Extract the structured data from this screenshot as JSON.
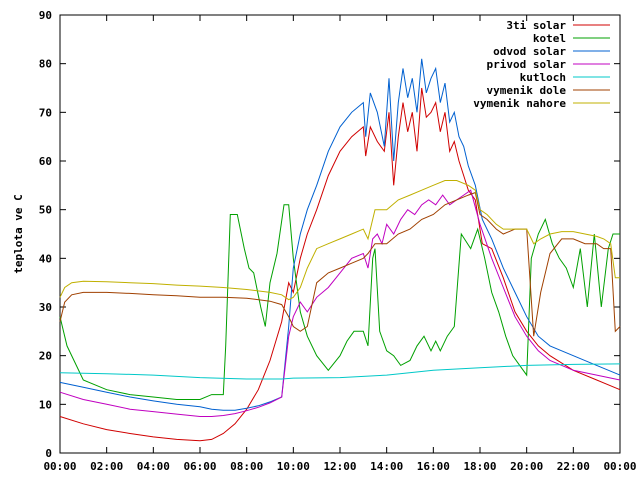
{
  "chart_data": {
    "type": "line",
    "ylabel": "teplota ve C",
    "xlabel": "",
    "title": "",
    "ylim": [
      0,
      90
    ],
    "xlim": [
      0,
      24
    ],
    "x_unit": "hours",
    "x_ticks": [
      {
        "value": 0,
        "label": "00:00"
      },
      {
        "value": 2,
        "label": "02:00"
      },
      {
        "value": 4,
        "label": "04:00"
      },
      {
        "value": 6,
        "label": "06:00"
      },
      {
        "value": 8,
        "label": "08:00"
      },
      {
        "value": 10,
        "label": "10:00"
      },
      {
        "value": 12,
        "label": "12:00"
      },
      {
        "value": 14,
        "label": "14:00"
      },
      {
        "value": 16,
        "label": "16:00"
      },
      {
        "value": 18,
        "label": "18:00"
      },
      {
        "value": 20,
        "label": "20:00"
      },
      {
        "value": 22,
        "label": "22:00"
      },
      {
        "value": 24,
        "label": "00:00"
      }
    ],
    "y_ticks": [
      {
        "value": 0,
        "label": "0"
      },
      {
        "value": 10,
        "label": "10"
      },
      {
        "value": 20,
        "label": "20"
      },
      {
        "value": 30,
        "label": "30"
      },
      {
        "value": 40,
        "label": "40"
      },
      {
        "value": 50,
        "label": "50"
      },
      {
        "value": 60,
        "label": "60"
      },
      {
        "value": 70,
        "label": "70"
      },
      {
        "value": 80,
        "label": "80"
      },
      {
        "value": 90,
        "label": "90"
      }
    ],
    "grid": false,
    "legend_position": "top-right",
    "series": [
      {
        "name": "3ti solar",
        "color": "#d00000",
        "x": [
          0,
          1,
          2,
          3,
          4,
          5,
          6,
          6.5,
          7,
          7.5,
          8,
          8.5,
          9,
          9.5,
          9.8,
          10,
          10.3,
          10.6,
          11,
          11.5,
          12,
          12.5,
          13,
          13.1,
          13.3,
          13.6,
          13.9,
          14.1,
          14.3,
          14.5,
          14.7,
          14.9,
          15.1,
          15.3,
          15.5,
          15.7,
          15.9,
          16.1,
          16.3,
          16.5,
          16.7,
          16.9,
          17.1,
          17.3,
          17.5,
          17.8,
          18.1,
          18.5,
          19,
          19.5,
          20,
          20.5,
          21,
          22,
          23,
          24
        ],
        "y": [
          7.5,
          6,
          4.8,
          4,
          3.3,
          2.8,
          2.5,
          2.8,
          4,
          6,
          9,
          13,
          19,
          27,
          35,
          33,
          40,
          45,
          50,
          57,
          62,
          65,
          67,
          61,
          67,
          64,
          62,
          70,
          55,
          65,
          72,
          66,
          70,
          62,
          75,
          69,
          70,
          72,
          66,
          70,
          62,
          64,
          60,
          57,
          54,
          52,
          43,
          42,
          36,
          29,
          25,
          22,
          20,
          17,
          15,
          13
        ]
      },
      {
        "name": "kotel",
        "color": "#00a000",
        "x": [
          0,
          0.3,
          1,
          2,
          3,
          4,
          5,
          6,
          6.5,
          7,
          7.1,
          7.3,
          7.6,
          7.9,
          8.1,
          8.3,
          8.6,
          8.8,
          9,
          9.3,
          9.6,
          9.8,
          10,
          10.3,
          10.6,
          11,
          11.5,
          12,
          12.3,
          12.6,
          13,
          13.2,
          13.4,
          13.5,
          13.7,
          14,
          14.3,
          14.6,
          15,
          15.3,
          15.6,
          15.9,
          16.1,
          16.3,
          16.6,
          16.9,
          17.2,
          17.6,
          17.9,
          18.2,
          18.5,
          18.8,
          19.1,
          19.4,
          19.7,
          20,
          20.2,
          20.5,
          20.8,
          21.1,
          21.4,
          21.7,
          22,
          22.3,
          22.6,
          22.9,
          23.2,
          23.5,
          23.7,
          24
        ],
        "y": [
          28,
          22,
          15,
          13,
          12,
          11.5,
          11,
          11,
          12,
          12,
          22,
          49,
          49,
          42,
          38,
          37,
          30,
          26,
          35,
          41,
          51,
          51,
          40,
          29,
          24,
          20,
          17,
          20,
          23,
          25,
          25,
          22,
          40,
          42,
          25,
          21,
          20,
          18,
          19,
          22,
          24,
          21,
          23,
          21,
          24,
          26,
          45,
          42,
          46,
          40,
          33,
          29,
          24,
          20,
          18,
          16,
          40,
          45,
          48,
          43,
          40,
          38,
          34,
          42,
          30,
          45,
          30,
          42,
          45,
          45
        ]
      },
      {
        "name": "odvod solar",
        "color": "#0060d0",
        "x": [
          0,
          1,
          2,
          3,
          4,
          5,
          6,
          6.5,
          7,
          7.5,
          8,
          8.5,
          9,
          9.5,
          9.8,
          10,
          10.3,
          10.6,
          11,
          11.5,
          12,
          12.5,
          13,
          13.1,
          13.3,
          13.6,
          13.9,
          14.1,
          14.3,
          14.5,
          14.7,
          14.9,
          15.1,
          15.3,
          15.5,
          15.7,
          15.9,
          16.1,
          16.3,
          16.5,
          16.7,
          16.9,
          17.1,
          17.3,
          17.5,
          17.8,
          18.1,
          18.5,
          19,
          19.5,
          20,
          20.5,
          21,
          22,
          23,
          24
        ],
        "y": [
          14.5,
          13.5,
          12.5,
          11.5,
          10.7,
          10,
          9.5,
          9,
          8.8,
          8.8,
          9.2,
          9.7,
          10.5,
          11.5,
          26,
          38,
          45,
          50,
          55,
          62,
          67,
          70,
          72,
          65,
          74,
          70,
          63,
          77,
          60,
          72,
          79,
          73,
          77,
          70,
          81,
          74,
          77,
          79,
          72,
          76,
          68,
          70,
          65,
          63,
          59,
          55,
          48,
          44,
          38,
          33,
          28,
          24,
          22,
          20,
          18,
          16
        ]
      },
      {
        "name": "privod solar",
        "color": "#c000c0",
        "x": [
          0,
          1,
          2,
          3,
          4,
          5,
          6,
          6.5,
          7,
          7.5,
          8,
          8.5,
          9,
          9.5,
          9.8,
          10,
          10.3,
          10.6,
          11,
          11.5,
          12,
          12.5,
          13,
          13.2,
          13.4,
          13.6,
          13.8,
          14,
          14.3,
          14.6,
          14.9,
          15.2,
          15.5,
          15.8,
          16.1,
          16.4,
          16.7,
          17,
          17.3,
          17.6,
          18,
          18.5,
          19,
          19.5,
          20,
          20.5,
          21,
          22,
          23,
          24
        ],
        "y": [
          12.5,
          11,
          10,
          9,
          8.5,
          8,
          7.5,
          7.5,
          7.7,
          8.1,
          8.7,
          9.4,
          10.3,
          11.5,
          24,
          28,
          31,
          29,
          32,
          34,
          37,
          40,
          41,
          38,
          44,
          45,
          43,
          47,
          45,
          48,
          50,
          49,
          51,
          52,
          51,
          53,
          51,
          52,
          53,
          54,
          47,
          40,
          34,
          28,
          24,
          21,
          19,
          17,
          16,
          15
        ]
      },
      {
        "name": "kutloch",
        "color": "#00c8c8",
        "x": [
          0,
          2,
          4,
          6,
          8,
          9.5,
          10,
          12,
          14,
          16,
          18,
          20,
          22,
          24
        ],
        "y": [
          16.5,
          16.3,
          16,
          15.5,
          15.2,
          15.2,
          15.4,
          15.5,
          16,
          17,
          17.5,
          18,
          18.2,
          18.3
        ]
      },
      {
        "name": "vymenik dole",
        "color": "#a04000",
        "x": [
          0,
          0.2,
          0.5,
          1,
          2,
          3,
          4,
          5,
          6,
          7,
          8,
          9,
          9.5,
          9.8,
          10,
          10.3,
          10.6,
          11,
          11.5,
          12,
          12.5,
          13,
          13.2,
          13.5,
          14,
          14.5,
          15,
          15.5,
          16,
          16.5,
          17,
          17.5,
          17.8,
          18,
          18.3,
          18.7,
          19,
          19.5,
          20,
          20.3,
          20.6,
          21,
          21.5,
          22,
          22.5,
          23,
          23.3,
          23.6,
          23.8,
          24
        ],
        "y": [
          27,
          31,
          32.5,
          33,
          33,
          32.8,
          32.5,
          32.3,
          32,
          32,
          31.8,
          31.2,
          30.5,
          28,
          26,
          25,
          26,
          35,
          37,
          38,
          39,
          40,
          41,
          43,
          43,
          45,
          46,
          48,
          49,
          51,
          52,
          53,
          53.5,
          49,
          48,
          46,
          45,
          46,
          46,
          24,
          33,
          41,
          44,
          44,
          43,
          43,
          42,
          42,
          25,
          26
        ]
      },
      {
        "name": "vymenik nahore",
        "color": "#c0b000",
        "x": [
          0,
          0.2,
          0.5,
          1,
          2,
          3,
          4,
          5,
          6,
          7,
          8,
          9,
          9.5,
          9.8,
          10,
          10.3,
          10.6,
          11,
          11.5,
          12,
          12.5,
          13,
          13.2,
          13.5,
          14,
          14.5,
          15,
          15.5,
          16,
          16.5,
          17,
          17.5,
          17.8,
          18,
          18.3,
          18.7,
          19,
          19.5,
          20,
          20.3,
          20.6,
          21,
          21.5,
          22,
          22.5,
          23,
          23.3,
          23.6,
          23.8,
          24
        ],
        "y": [
          32,
          34,
          35,
          35.3,
          35.2,
          35,
          34.8,
          34.5,
          34.3,
          34,
          33.6,
          33,
          32.5,
          31.5,
          32,
          34,
          38,
          42,
          43,
          44,
          45,
          46,
          44,
          50,
          50,
          52,
          53,
          54,
          55,
          56,
          56,
          55,
          54,
          50,
          49,
          47,
          46,
          46,
          46,
          43,
          44,
          45,
          45.5,
          45.5,
          45,
          44.5,
          44,
          43,
          36,
          36
        ]
      }
    ]
  }
}
